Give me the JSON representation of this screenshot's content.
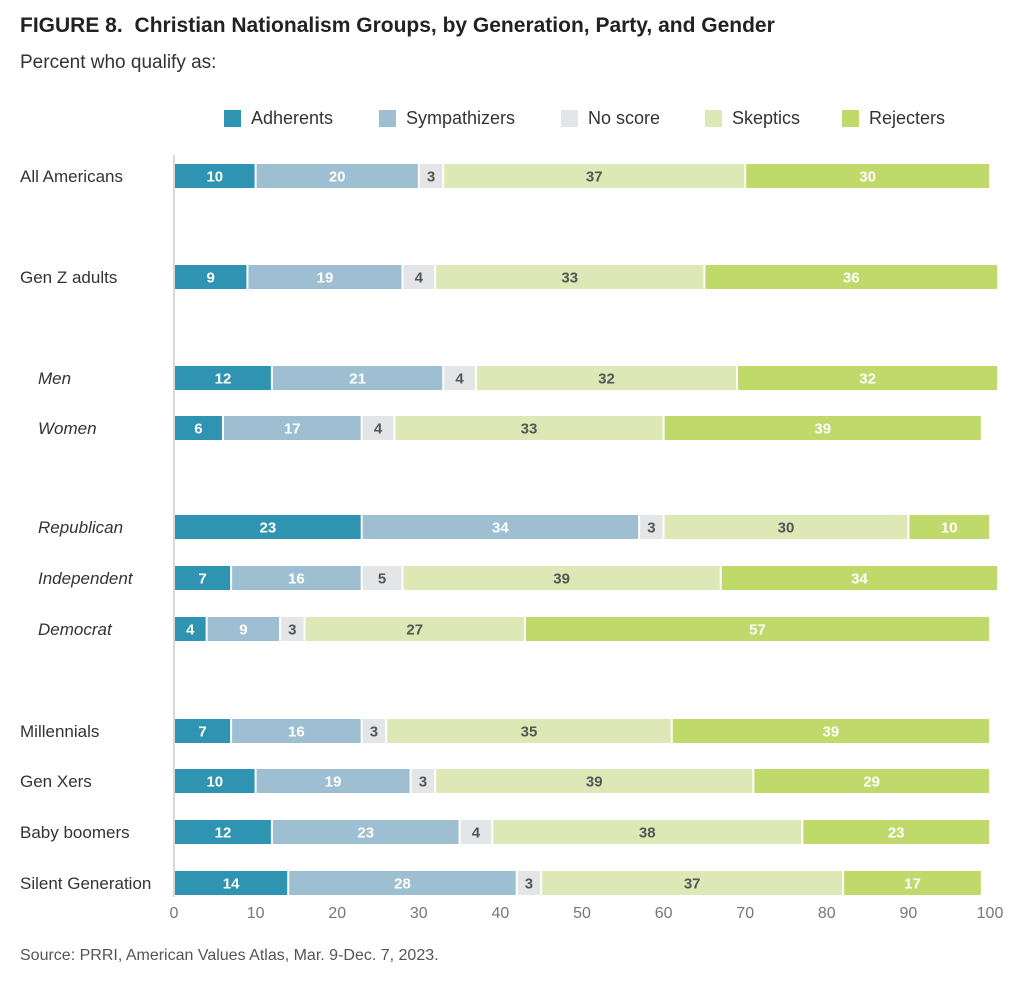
{
  "figure": {
    "number": "FIGURE 8.",
    "title": "Christian Nationalism Groups, by Generation, Party, and Gender",
    "subtitle": "Percent who qualify as:",
    "source": "Source: PRRI, American Values Atlas, Mar. 9-Dec. 7, 2023."
  },
  "colors": {
    "adherents": "#2e94b1",
    "sympathizers": "#9dbfd1",
    "no_score": "#e3e5e6",
    "skeptics": "#dde8b6",
    "rejecters": "#bfd96b",
    "axis": "#cccccc",
    "label_light": "#ffffff",
    "label_dark": "#555555"
  },
  "chart_data": {
    "type": "bar",
    "orientation": "horizontal",
    "stacked": true,
    "legend_position": "top",
    "grid": false,
    "xlim": [
      0,
      100
    ],
    "xticks": [
      0,
      10,
      20,
      30,
      40,
      50,
      60,
      70,
      80,
      90,
      100
    ],
    "legend": [
      "Adherents",
      "Sympathizers",
      "No score",
      "Skeptics",
      "Rejecters"
    ],
    "categories": [
      {
        "label": "All Americans",
        "italic": false
      },
      {
        "label": "Gen Z adults",
        "italic": false
      },
      {
        "label": "Men",
        "italic": true
      },
      {
        "label": "Women",
        "italic": true
      },
      {
        "label": "Republican",
        "italic": true
      },
      {
        "label": "Independent",
        "italic": true
      },
      {
        "label": "Democrat",
        "italic": true
      },
      {
        "label": "Millennials",
        "italic": false
      },
      {
        "label": "Gen Xers",
        "italic": false
      },
      {
        "label": "Baby boomers",
        "italic": false
      },
      {
        "label": "Silent Generation",
        "italic": false
      }
    ],
    "series": [
      {
        "name": "Adherents",
        "values": [
          10,
          9,
          12,
          6,
          23,
          7,
          4,
          7,
          10,
          12,
          14
        ]
      },
      {
        "name": "Sympathizers",
        "values": [
          20,
          19,
          21,
          17,
          34,
          16,
          9,
          16,
          19,
          23,
          28
        ]
      },
      {
        "name": "No score",
        "values": [
          3,
          4,
          4,
          4,
          3,
          5,
          3,
          3,
          3,
          4,
          3
        ]
      },
      {
        "name": "Skeptics",
        "values": [
          37,
          33,
          32,
          33,
          30,
          39,
          27,
          35,
          39,
          38,
          37
        ]
      },
      {
        "name": "Rejecters",
        "values": [
          30,
          36,
          32,
          39,
          10,
          34,
          57,
          39,
          29,
          23,
          17
        ]
      }
    ]
  }
}
